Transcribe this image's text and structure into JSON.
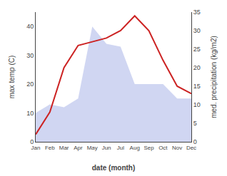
{
  "chart_data": {
    "type": "combo",
    "categories": [
      "Jan",
      "Feb",
      "Mar",
      "Apr",
      "May",
      "Jun",
      "Jul",
      "Aug",
      "Sep",
      "Oct",
      "Nov",
      "Dec"
    ],
    "series": [
      {
        "type": "area",
        "color": "#aab4e8",
        "values": [
          10,
          13,
          12,
          15,
          40,
          34,
          33,
          20,
          20,
          20,
          15,
          15
        ]
      },
      {
        "type": "line",
        "color": "#cc2222",
        "axis": "y2",
        "values": [
          2,
          8,
          20,
          26,
          27,
          28,
          30,
          34,
          30,
          22,
          15,
          13
        ]
      }
    ],
    "xlabel": "date (month)",
    "ylabel": "max temp (C)",
    "y2label": "med. precipitation (kg/m2)",
    "ylim": [
      0,
      45
    ],
    "yticks": [
      0,
      10,
      20,
      30,
      40
    ],
    "y2lim": [
      0,
      35
    ],
    "y2ticks": [
      0,
      5,
      10,
      15,
      20,
      25,
      30,
      35
    ],
    "grid": false
  }
}
